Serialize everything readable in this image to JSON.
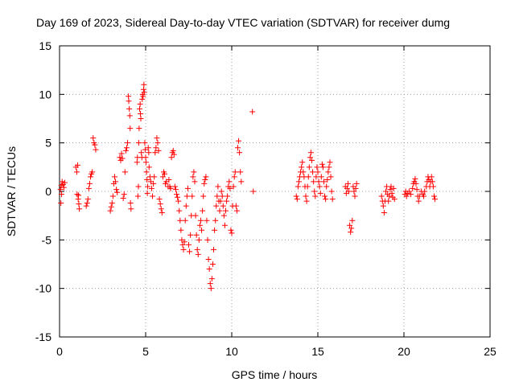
{
  "chart_data": {
    "type": "scatter",
    "title": "Day 169 of 2023, Sidereal Day-to-day VTEC variation (SDTVAR) for receiver dumg",
    "xlabel": "GPS time / hours",
    "ylabel": "SDTVAR / TECUs",
    "xlim": [
      0,
      25
    ],
    "ylim": [
      -15,
      15
    ],
    "xticks": [
      0,
      5,
      10,
      15,
      20,
      25
    ],
    "yticks": [
      -15,
      -10,
      -5,
      0,
      5,
      10,
      15
    ],
    "xtick_labels": [
      "0",
      "5",
      "10",
      "15",
      "20",
      "25"
    ],
    "ytick_labels": [
      "-15",
      "-10",
      "-5",
      "0",
      "5",
      "10",
      "15"
    ],
    "grid": true,
    "marker": "+",
    "color": "#ff0000",
    "series": [
      {
        "name": "SDTVAR",
        "points": [
          [
            0.05,
            0.2
          ],
          [
            0.1,
            0.6
          ],
          [
            0.15,
            1.0
          ],
          [
            0.2,
            0.7
          ],
          [
            0.25,
            0.4
          ],
          [
            0.3,
            0.9
          ],
          [
            0.08,
            -1.2
          ],
          [
            0.12,
            -0.3
          ],
          [
            0.95,
            2.5
          ],
          [
            1.0,
            2.0
          ],
          [
            1.05,
            2.7
          ],
          [
            1.02,
            -0.3
          ],
          [
            1.08,
            -0.8
          ],
          [
            1.12,
            -1.3
          ],
          [
            1.15,
            -1.8
          ],
          [
            1.1,
            -0.4
          ],
          [
            1.55,
            -1.5
          ],
          [
            1.6,
            -1.2
          ],
          [
            1.65,
            -0.8
          ],
          [
            1.7,
            0.3
          ],
          [
            1.75,
            0.8
          ],
          [
            1.8,
            1.5
          ],
          [
            1.85,
            1.8
          ],
          [
            1.9,
            2.0
          ],
          [
            1.95,
            5.5
          ],
          [
            2.0,
            5.0
          ],
          [
            2.05,
            4.8
          ],
          [
            2.1,
            4.3
          ],
          [
            2.95,
            -2.0
          ],
          [
            3.0,
            -1.6
          ],
          [
            3.05,
            -1.2
          ],
          [
            3.1,
            -0.5
          ],
          [
            3.15,
            0.8
          ],
          [
            3.2,
            1.5
          ],
          [
            3.25,
            1.0
          ],
          [
            3.3,
            0.2
          ],
          [
            3.35,
            -0.1
          ],
          [
            3.5,
            3.5
          ],
          [
            3.55,
            3.2
          ],
          [
            3.6,
            3.9
          ],
          [
            3.65,
            3.4
          ],
          [
            3.7,
            -0.7
          ],
          [
            3.75,
            -0.3
          ],
          [
            3.8,
            2.0
          ],
          [
            3.85,
            4.2
          ],
          [
            3.9,
            4.5
          ],
          [
            3.95,
            5.0
          ],
          [
            4.0,
            9.8
          ],
          [
            4.02,
            9.3
          ],
          [
            4.05,
            8.5
          ],
          [
            4.08,
            7.8
          ],
          [
            4.1,
            6.5
          ],
          [
            4.12,
            -1.2
          ],
          [
            4.15,
            -1.8
          ],
          [
            4.5,
            3.0
          ],
          [
            4.52,
            3.5
          ],
          [
            4.55,
            -0.5
          ],
          [
            4.58,
            0.5
          ],
          [
            4.6,
            5.0
          ],
          [
            4.62,
            6.5
          ],
          [
            4.65,
            8.5
          ],
          [
            4.68,
            9.0
          ],
          [
            4.7,
            8.0
          ],
          [
            4.72,
            7.5
          ],
          [
            4.75,
            4.0
          ],
          [
            4.78,
            3.5
          ],
          [
            4.8,
            9.5
          ],
          [
            4.82,
            10.0
          ],
          [
            4.85,
            9.8
          ],
          [
            4.88,
            10.5
          ],
          [
            4.9,
            11.0
          ],
          [
            4.92,
            10.2
          ],
          [
            4.95,
            5.0
          ],
          [
            4.97,
            4.3
          ],
          [
            5.0,
            3.5
          ],
          [
            5.02,
            3.0
          ],
          [
            5.05,
            2.0
          ],
          [
            5.08,
            1.2
          ],
          [
            5.1,
            -0.2
          ],
          [
            5.12,
            0.5
          ],
          [
            5.15,
            4.5
          ],
          [
            5.18,
            4.0
          ],
          [
            5.2,
            2.5
          ],
          [
            5.25,
            1.5
          ],
          [
            5.3,
            1.0
          ],
          [
            5.35,
            0.3
          ],
          [
            5.4,
            -0.5
          ],
          [
            5.45,
            0.8
          ],
          [
            5.5,
            1.5
          ],
          [
            5.55,
            4.0
          ],
          [
            5.6,
            4.5
          ],
          [
            5.65,
            5.5
          ],
          [
            5.7,
            5.0
          ],
          [
            5.75,
            4.2
          ],
          [
            5.8,
            -0.8
          ],
          [
            5.85,
            -1.3
          ],
          [
            5.9,
            -1.8
          ],
          [
            5.95,
            -2.2
          ],
          [
            6.0,
            1.5
          ],
          [
            6.05,
            2.0
          ],
          [
            6.1,
            1.8
          ],
          [
            6.15,
            0.8
          ],
          [
            6.2,
            1.0
          ],
          [
            6.3,
            0.5
          ],
          [
            6.35,
            1.2
          ],
          [
            6.4,
            0.5
          ],
          [
            6.45,
            0.3
          ],
          [
            6.5,
            3.5
          ],
          [
            6.55,
            4.0
          ],
          [
            6.6,
            4.2
          ],
          [
            6.65,
            3.8
          ],
          [
            6.7,
            0.5
          ],
          [
            6.75,
            0.2
          ],
          [
            6.8,
            -0.3
          ],
          [
            6.85,
            -0.6
          ],
          [
            6.9,
            -1.0
          ],
          [
            6.95,
            -2.0
          ],
          [
            7.0,
            -3.0
          ],
          [
            7.05,
            -4.0
          ],
          [
            7.1,
            -5.0
          ],
          [
            7.15,
            -5.5
          ],
          [
            7.2,
            -6.0
          ],
          [
            7.25,
            -5.2
          ],
          [
            7.3,
            -3.0
          ],
          [
            7.35,
            -1.5
          ],
          [
            7.4,
            -0.5
          ],
          [
            7.45,
            0.3
          ],
          [
            7.5,
            -5.5
          ],
          [
            7.55,
            -6.2
          ],
          [
            7.6,
            -4.5
          ],
          [
            7.65,
            -2.5
          ],
          [
            7.7,
            -0.5
          ],
          [
            7.75,
            1.5
          ],
          [
            7.8,
            2.0
          ],
          [
            7.85,
            1.0
          ],
          [
            7.9,
            -2.5
          ],
          [
            7.95,
            -4.5
          ],
          [
            8.0,
            -6.0
          ],
          [
            8.05,
            -6.5
          ],
          [
            8.1,
            -5.0
          ],
          [
            8.15,
            -3.5
          ],
          [
            8.2,
            -3.0
          ],
          [
            8.25,
            -4.0
          ],
          [
            8.3,
            -2.0
          ],
          [
            8.35,
            -0.5
          ],
          [
            8.4,
            0.8
          ],
          [
            8.45,
            1.2
          ],
          [
            8.5,
            1.5
          ],
          [
            8.55,
            -3.0
          ],
          [
            8.6,
            -5.0
          ],
          [
            8.65,
            -7.0
          ],
          [
            8.7,
            -8.0
          ],
          [
            8.75,
            -9.5
          ],
          [
            8.8,
            -10.0
          ],
          [
            8.85,
            -9.0
          ],
          [
            8.9,
            -7.5
          ],
          [
            8.95,
            -6.0
          ],
          [
            9.0,
            -4.0
          ],
          [
            9.05,
            -3.0
          ],
          [
            9.1,
            -1.5
          ],
          [
            9.15,
            -0.5
          ],
          [
            9.2,
            0.5
          ],
          [
            9.25,
            -1.0
          ],
          [
            9.3,
            -2.0
          ],
          [
            9.35,
            -1.0
          ],
          [
            9.4,
            0.0
          ],
          [
            9.45,
            -0.5
          ],
          [
            9.5,
            -1.5
          ],
          [
            9.55,
            -2.5
          ],
          [
            9.6,
            -3.5
          ],
          [
            9.65,
            -2.0
          ],
          [
            9.7,
            -1.0
          ],
          [
            9.75,
            -0.5
          ],
          [
            9.8,
            0.5
          ],
          [
            9.85,
            1.0
          ],
          [
            9.9,
            0.3
          ],
          [
            9.95,
            -4.0
          ],
          [
            10.0,
            -4.3
          ],
          [
            10.05,
            -1.5
          ],
          [
            10.1,
            0.5
          ],
          [
            10.15,
            1.5
          ],
          [
            10.2,
            2.0
          ],
          [
            10.25,
            -1.5
          ],
          [
            10.3,
            -2.0
          ],
          [
            10.35,
            4.5
          ],
          [
            10.4,
            5.2
          ],
          [
            10.45,
            4.0
          ],
          [
            10.5,
            2.0
          ],
          [
            10.55,
            1.0
          ],
          [
            11.2,
            8.2
          ],
          [
            11.25,
            0.0
          ],
          [
            13.75,
            -0.5
          ],
          [
            13.8,
            -0.8
          ],
          [
            13.85,
            0.5
          ],
          [
            13.9,
            1.0
          ],
          [
            13.95,
            1.5
          ],
          [
            14.0,
            2.0
          ],
          [
            14.05,
            2.5
          ],
          [
            14.1,
            3.0
          ],
          [
            14.15,
            2.0
          ],
          [
            14.2,
            1.5
          ],
          [
            14.25,
            0.5
          ],
          [
            14.3,
            -0.5
          ],
          [
            14.35,
            -1.0
          ],
          [
            14.4,
            0.5
          ],
          [
            14.45,
            1.5
          ],
          [
            14.5,
            2.5
          ],
          [
            14.55,
            3.5
          ],
          [
            14.6,
            4.0
          ],
          [
            14.65,
            3.2
          ],
          [
            14.7,
            2.0
          ],
          [
            14.75,
            1.0
          ],
          [
            14.8,
            0.0
          ],
          [
            14.85,
            -0.5
          ],
          [
            14.9,
            1.5
          ],
          [
            14.95,
            2.5
          ],
          [
            15.0,
            2.0
          ],
          [
            15.05,
            1.0
          ],
          [
            15.1,
            0.5
          ],
          [
            15.15,
            -0.2
          ],
          [
            15.2,
            1.5
          ],
          [
            15.25,
            2.8
          ],
          [
            15.3,
            2.5
          ],
          [
            15.35,
            1.0
          ],
          [
            15.4,
            -0.5
          ],
          [
            15.45,
            -0.8
          ],
          [
            15.5,
            0.5
          ],
          [
            15.55,
            1.2
          ],
          [
            15.6,
            2.0
          ],
          [
            15.65,
            2.5
          ],
          [
            15.7,
            3.0
          ],
          [
            15.75,
            1.5
          ],
          [
            15.8,
            0.0
          ],
          [
            15.85,
            -0.8
          ],
          [
            16.6,
            0.5
          ],
          [
            16.65,
            -0.2
          ],
          [
            16.7,
            0.3
          ],
          [
            16.75,
            0.8
          ],
          [
            16.8,
            0.0
          ],
          [
            16.85,
            -3.5
          ],
          [
            16.9,
            -4.2
          ],
          [
            16.95,
            -3.8
          ],
          [
            17.0,
            -3.0
          ],
          [
            17.05,
            0.5
          ],
          [
            17.1,
            0.0
          ],
          [
            17.15,
            -0.5
          ],
          [
            17.2,
            0.3
          ],
          [
            17.25,
            0.8
          ],
          [
            18.7,
            -0.5
          ],
          [
            18.75,
            -1.0
          ],
          [
            18.8,
            -1.5
          ],
          [
            18.85,
            -2.2
          ],
          [
            18.9,
            -1.0
          ],
          [
            18.95,
            0.0
          ],
          [
            19.0,
            0.5
          ],
          [
            19.05,
            -0.3
          ],
          [
            19.1,
            -1.0
          ],
          [
            19.15,
            -0.5
          ],
          [
            19.2,
            0.2
          ],
          [
            19.25,
            0.5
          ],
          [
            19.3,
            -0.2
          ],
          [
            19.35,
            -0.6
          ],
          [
            19.4,
            0.3
          ],
          [
            19.45,
            -0.8
          ],
          [
            20.05,
            -0.3
          ],
          [
            20.1,
            0.0
          ],
          [
            20.15,
            -0.5
          ],
          [
            20.2,
            -0.2
          ],
          [
            20.3,
            0.0
          ],
          [
            20.4,
            -0.3
          ],
          [
            20.5,
            0.3
          ],
          [
            20.55,
            0.8
          ],
          [
            20.6,
            1.0
          ],
          [
            20.65,
            1.3
          ],
          [
            20.7,
            0.8
          ],
          [
            20.75,
            0.2
          ],
          [
            20.8,
            -0.5
          ],
          [
            20.85,
            -1.0
          ],
          [
            20.9,
            -0.5
          ],
          [
            21.0,
            0.0
          ],
          [
            21.1,
            -0.3
          ],
          [
            21.15,
            -0.5
          ],
          [
            21.2,
            0.0
          ],
          [
            21.3,
            0.5
          ],
          [
            21.35,
            1.0
          ],
          [
            21.4,
            1.5
          ],
          [
            21.45,
            1.2
          ],
          [
            21.5,
            0.5
          ],
          [
            21.55,
            1.0
          ],
          [
            21.6,
            1.5
          ],
          [
            21.65,
            1.0
          ],
          [
            21.7,
            0.5
          ],
          [
            21.75,
            -0.5
          ],
          [
            21.8,
            -0.8
          ]
        ]
      }
    ]
  }
}
